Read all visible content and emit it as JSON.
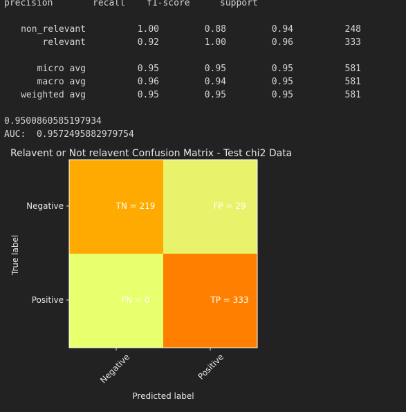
{
  "report": {
    "header": [
      "precision",
      "recall",
      "f1-score",
      "support"
    ],
    "rows": [
      {
        "label": "non_relevant",
        "precision": "1.00",
        "recall": "0.88",
        "f1": "0.94",
        "support": "248"
      },
      {
        "label": "relevant",
        "precision": "0.92",
        "recall": "1.00",
        "f1": "0.96",
        "support": "333"
      }
    ],
    "avg_rows": [
      {
        "label": "micro avg",
        "precision": "0.95",
        "recall": "0.95",
        "f1": "0.95",
        "support": "581"
      },
      {
        "label": "macro avg",
        "precision": "0.96",
        "recall": "0.94",
        "f1": "0.95",
        "support": "581"
      },
      {
        "label": "weighted avg",
        "precision": "0.95",
        "recall": "0.95",
        "f1": "0.95",
        "support": "581"
      }
    ],
    "accuracy": "0.9500860585197934",
    "auc_line": "AUC:  0.9572495882979754"
  },
  "chart_data": {
    "type": "heatmap",
    "title": "Relavent or Not relavent Confusion Matrix - Test chi2 Data",
    "xlabel": "Predicted label",
    "ylabel": "True label",
    "x_categories": [
      "Negative",
      "Positive"
    ],
    "y_categories": [
      "Negative",
      "Positive"
    ],
    "values": [
      [
        219,
        29
      ],
      [
        0,
        333
      ]
    ],
    "cell_labels": [
      [
        "TN = 219",
        "FP = 29"
      ],
      [
        "FN = 0",
        "TP = 333"
      ]
    ],
    "colors": [
      [
        "#ffaa00",
        "#e8f26a"
      ],
      [
        "#e8ff6e",
        "#ff8000"
      ]
    ],
    "colormap": "Wistia",
    "grid": false
  }
}
